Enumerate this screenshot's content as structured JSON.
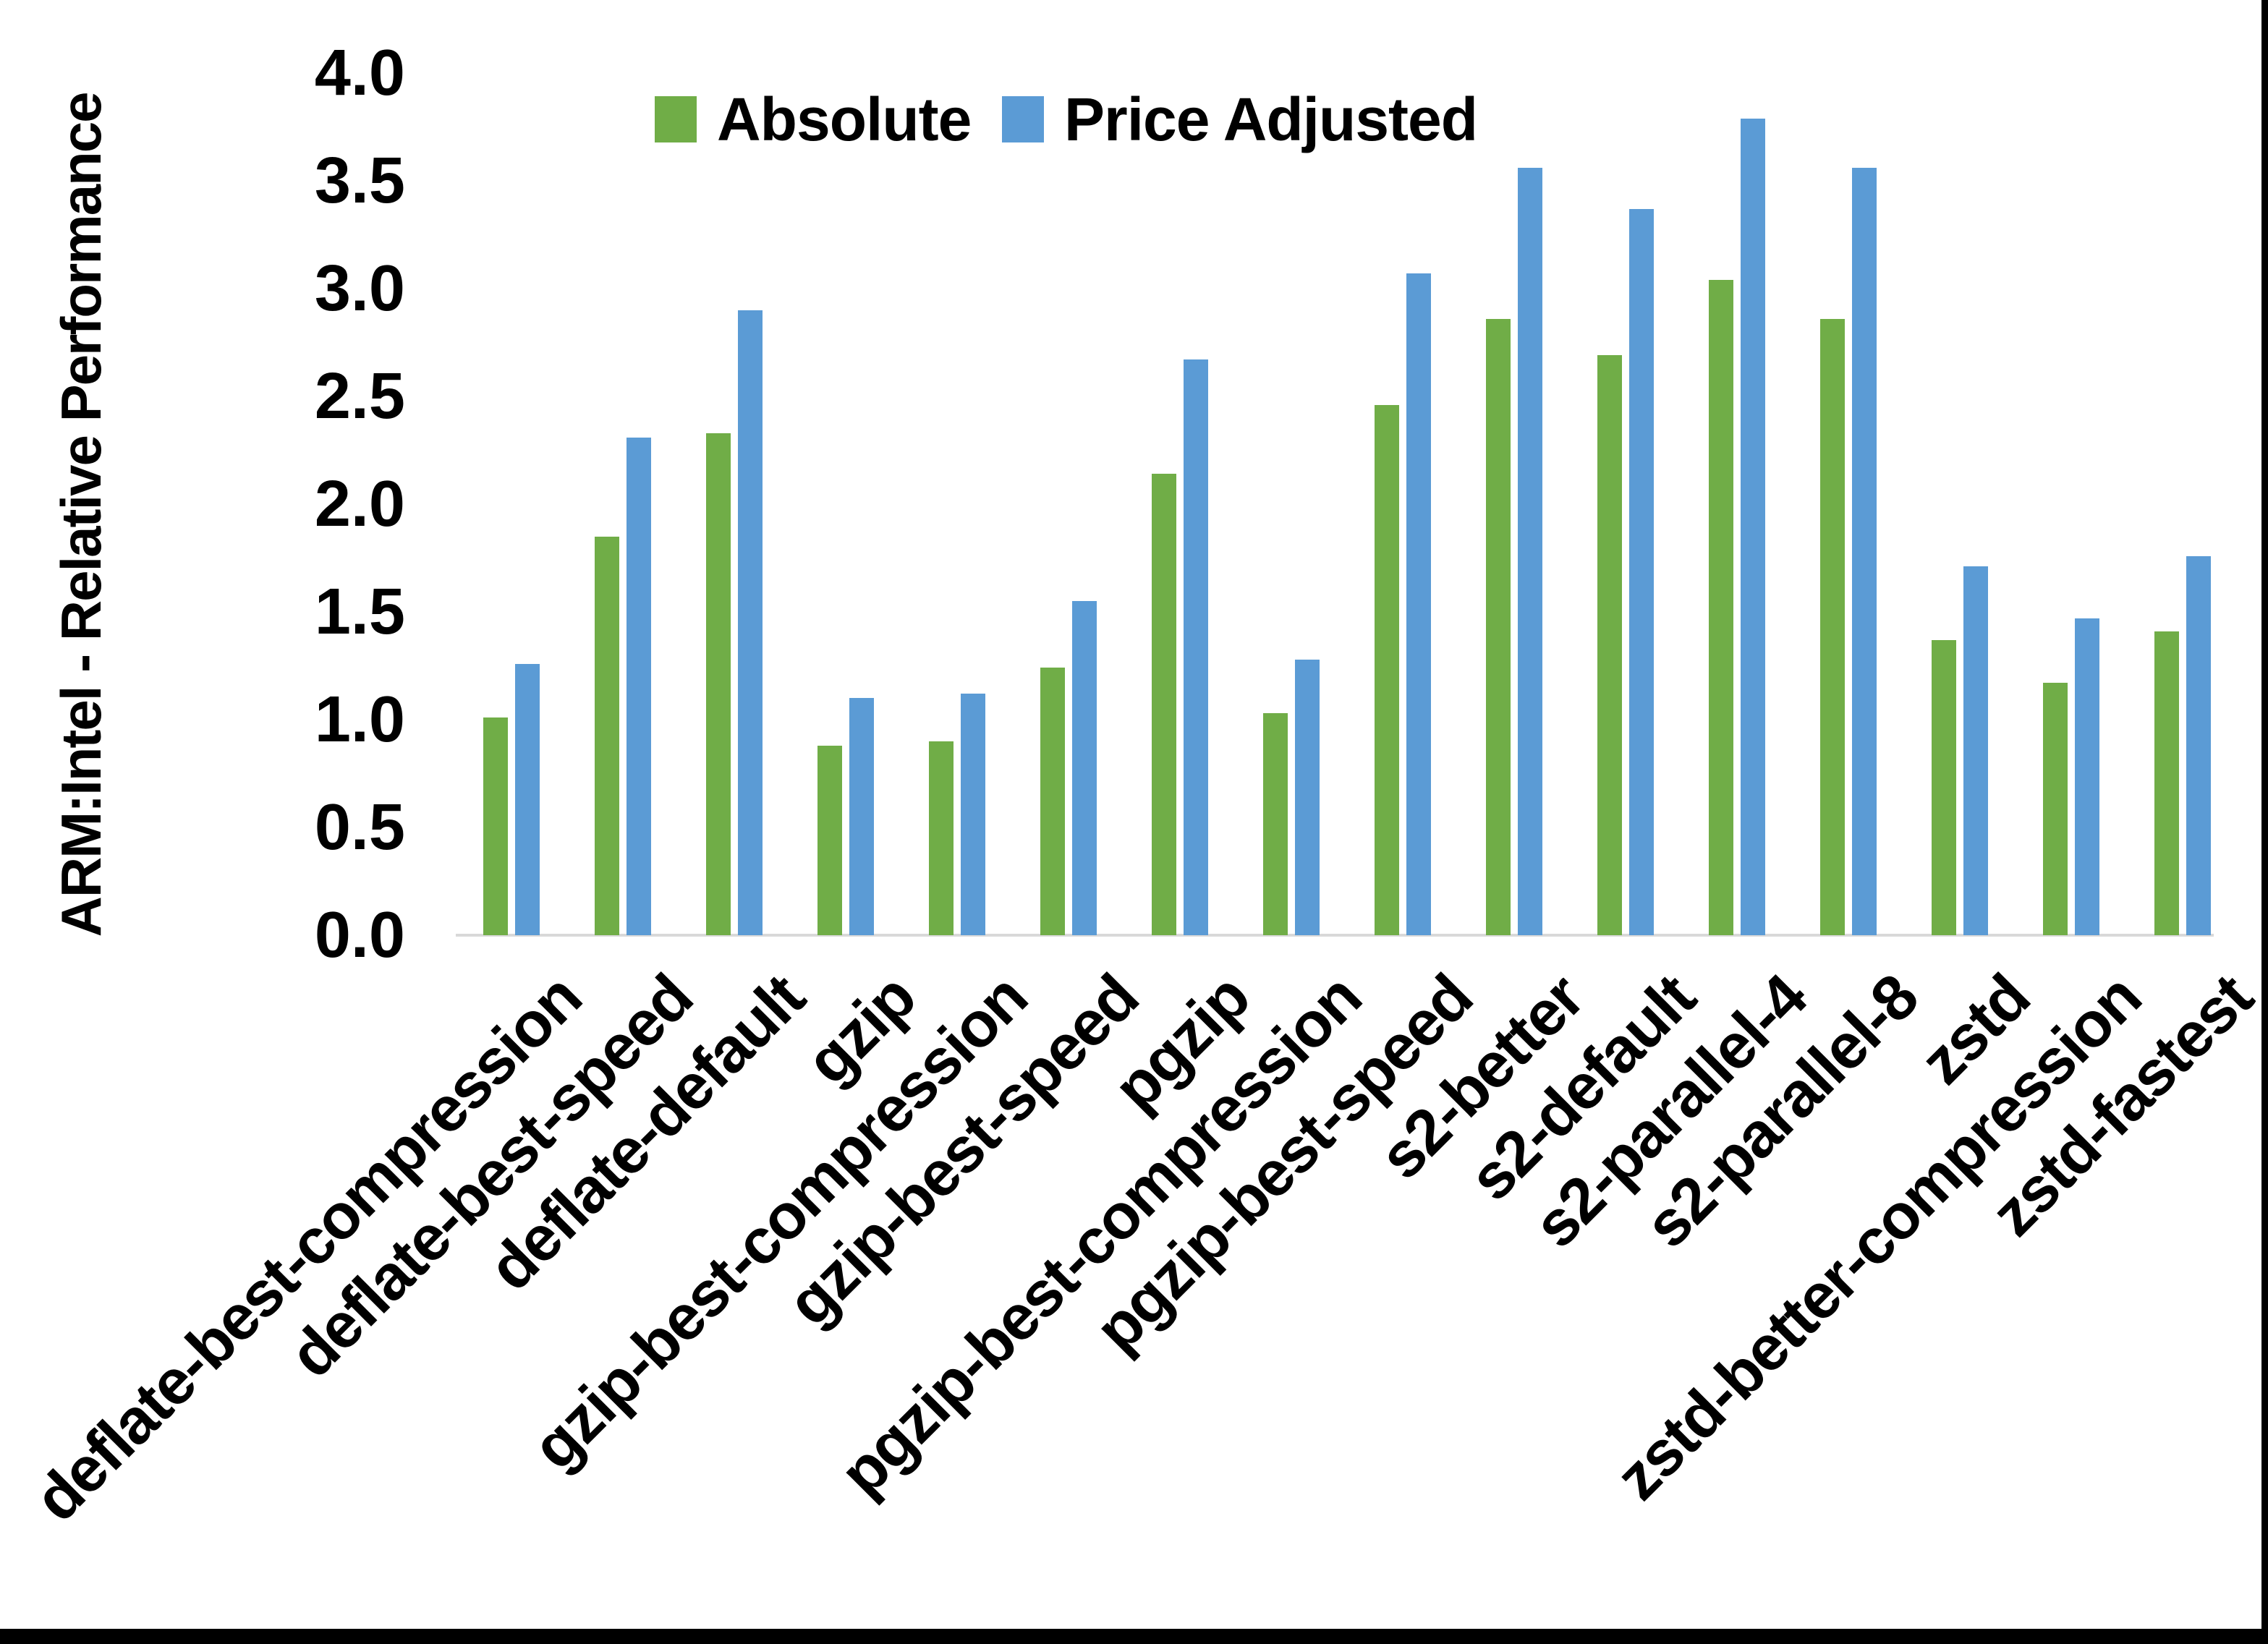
{
  "chart_data": {
    "type": "bar",
    "title": "",
    "xlabel": "",
    "ylabel": "ARM:Intel - Relative Performance",
    "ylim": [
      0.0,
      4.0
    ],
    "ytick_step": 0.5,
    "yticks": [
      "0.0",
      "0.5",
      "1.0",
      "1.5",
      "2.0",
      "2.5",
      "3.0",
      "3.5",
      "4.0"
    ],
    "grid": false,
    "legend_position": "top-center",
    "axis_line_color": "#D9D9D9",
    "categories": [
      "deflate-best-compression",
      "deflate-best-speed",
      "deflate-default",
      "gzip",
      "gzip-best-compression",
      "gzip-best-speed",
      "pgzip",
      "pgzip-best-compression",
      "pgzip-best-speed",
      "s2-better",
      "s2-default",
      "s2-parallel-4",
      "s2-parallel-8",
      "zstd",
      "zstd-better-compression",
      "zstd-fastest"
    ],
    "series": [
      {
        "name": "Absolute",
        "color": "#70AD47",
        "values": [
          1.01,
          1.85,
          2.33,
          0.88,
          0.9,
          1.24,
          2.14,
          1.03,
          2.46,
          2.86,
          2.69,
          3.04,
          2.86,
          1.37,
          1.17,
          1.41
        ]
      },
      {
        "name": "Price Adjusted",
        "color": "#5B9BD5",
        "values": [
          1.26,
          2.31,
          2.9,
          1.1,
          1.12,
          1.55,
          2.67,
          1.28,
          3.07,
          3.56,
          3.37,
          3.79,
          3.56,
          1.71,
          1.47,
          1.76
        ]
      }
    ],
    "page_border_color": "#000000"
  }
}
